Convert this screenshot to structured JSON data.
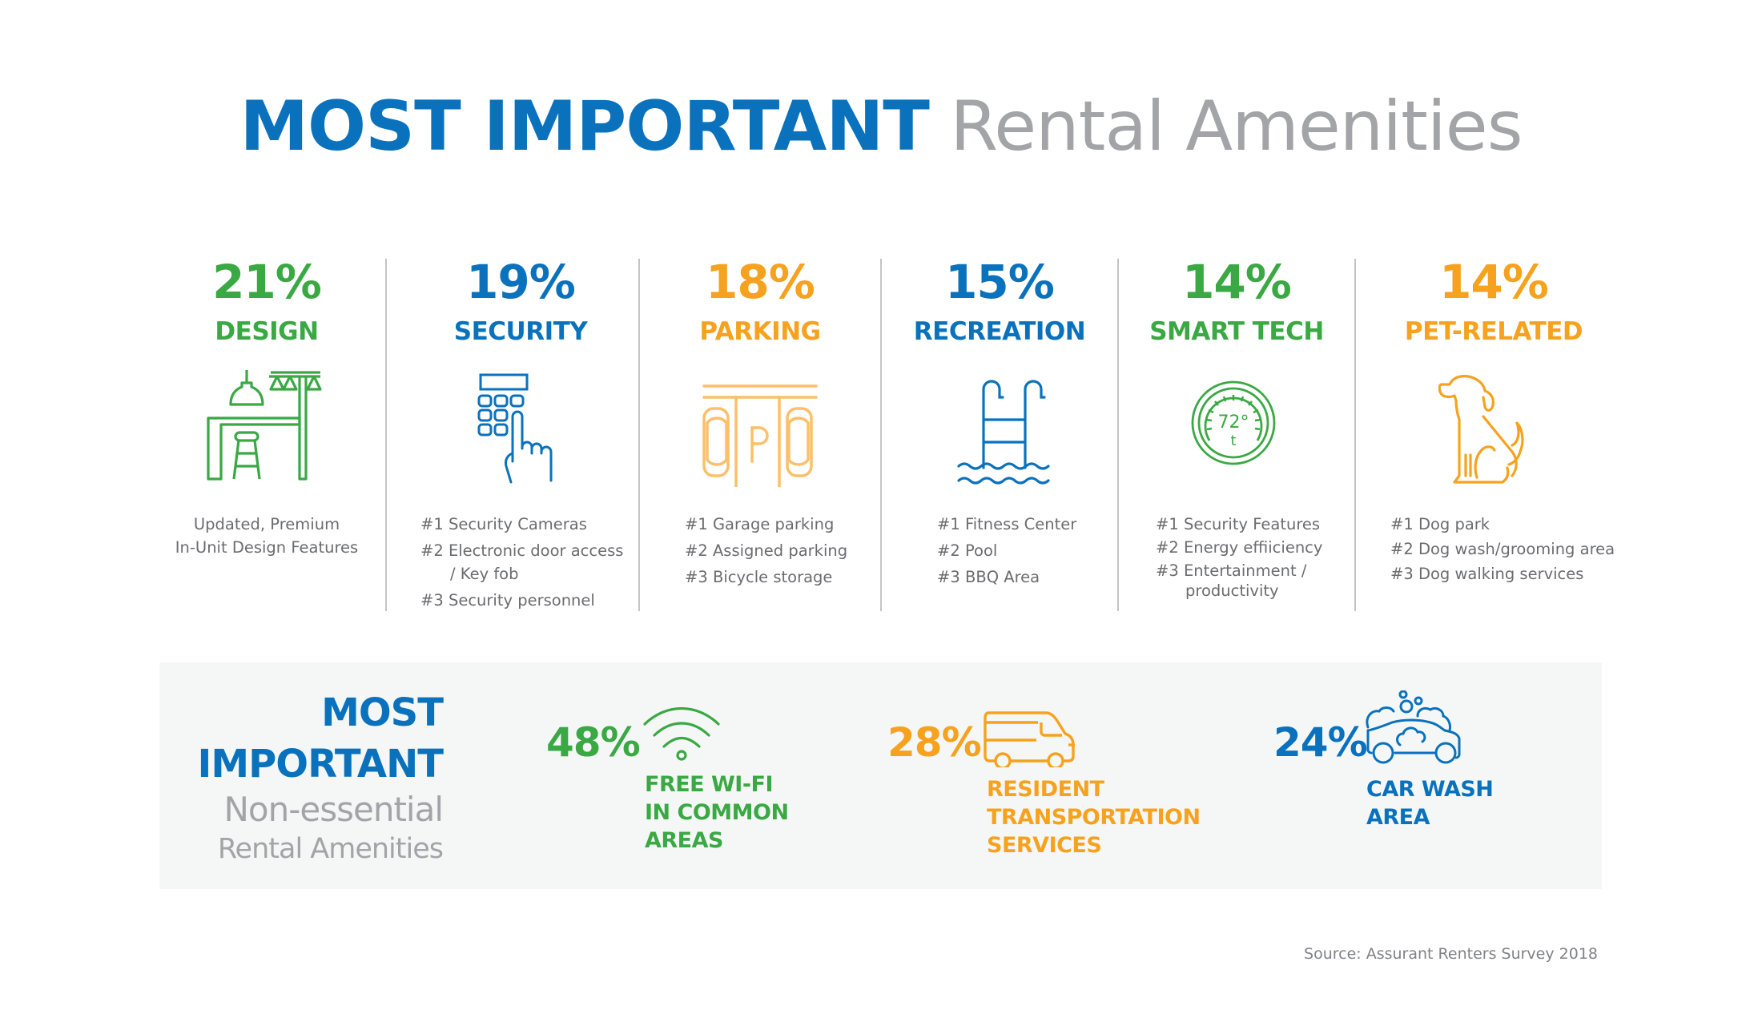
{
  "title": {
    "bold": "MOST IMPORTANT",
    "light": "Rental Amenities"
  },
  "colors": {
    "green": "#3aa843",
    "blue": "#0a72bd",
    "orange": "#f6a21e",
    "gray": "#a2a4a7",
    "text": "#6b6c6f",
    "panel": "#f5f7f7"
  },
  "categories": [
    {
      "percent": "21%",
      "label": "DESIGN",
      "icon": "bar-stool-kitchen-icon",
      "color": "green",
      "description": [
        "Updated, Premium",
        "In-Unit Design Features"
      ]
    },
    {
      "percent": "19%",
      "label": "SECURITY",
      "icon": "keypad-hand-icon",
      "color": "blue",
      "items": [
        "#1 Security Cameras",
        "#2 Electronic door access",
        "/ Key fob",
        "#3 Security personnel"
      ]
    },
    {
      "percent": "18%",
      "label": "PARKING",
      "icon": "parking-lot-icon",
      "color": "orange",
      "items": [
        "#1 Garage parking",
        "#2 Assigned parking",
        "#3 Bicycle storage"
      ]
    },
    {
      "percent": "15%",
      "label": "RECREATION",
      "icon": "pool-ladder-icon",
      "color": "blue",
      "items": [
        "#1 Fitness Center",
        "#2 Pool",
        "#3 BBQ Area"
      ]
    },
    {
      "percent": "14%",
      "label": "SMART TECH",
      "icon": "thermostat-icon",
      "color": "green",
      "thermostat_reading": "72°",
      "thermostat_unit": "t",
      "items": [
        "#1 Security Features",
        "#2 Energy effiiciency",
        "#3 Entertainment /",
        "productivity"
      ]
    },
    {
      "percent": "14%",
      "label": "PET-RELATED",
      "icon": "dog-icon",
      "color": "orange",
      "items": [
        "#1 Dog park",
        "#2 Dog wash/grooming area",
        "#3 Dog walking services"
      ]
    }
  ],
  "non_essential": {
    "heading_line1": "MOST",
    "heading_line2": "IMPORTANT",
    "sub_line1": "Non-essential",
    "sub_line2": "Rental Amenities",
    "items": [
      {
        "percent": "48%",
        "icon": "wifi-icon",
        "color": "green",
        "label": [
          "FREE WI-FI",
          "IN COMMON",
          "AREAS"
        ]
      },
      {
        "percent": "28%",
        "icon": "van-icon",
        "color": "orange",
        "label": [
          "RESIDENT",
          "TRANSPORTATION",
          "SERVICES"
        ]
      },
      {
        "percent": "24%",
        "icon": "car-wash-icon",
        "color": "blue",
        "label": [
          "CAR WASH",
          "AREA"
        ]
      }
    ]
  },
  "source": "Source: Assurant Renters Survey 2018"
}
